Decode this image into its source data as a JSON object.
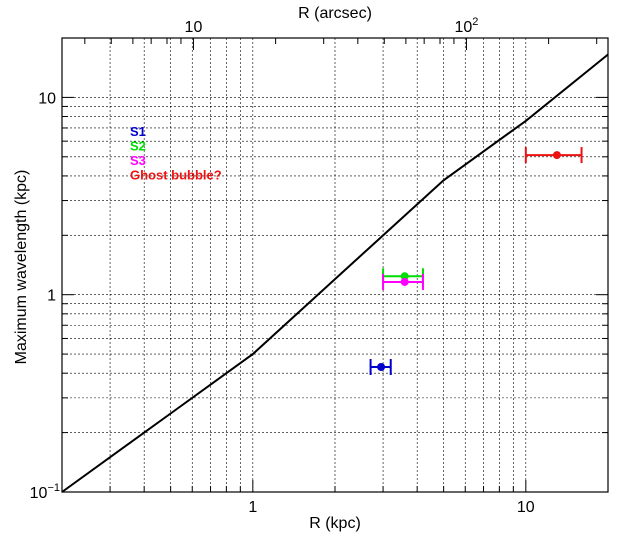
{
  "chart_data": {
    "type": "scatter",
    "xlabel": "R (kpc)",
    "ylabel": "Maximum wavelength (kpc)",
    "top_xlabel": "R (arcsec)",
    "x_scale": "log",
    "y_scale": "log",
    "xlim": [
      0.2,
      20
    ],
    "ylim": [
      0.1,
      20
    ],
    "top_xlim_arcsec": [
      3.3,
      330
    ],
    "grid": true,
    "x_ticks": [
      {
        "value": 1,
        "label": "1"
      },
      {
        "value": 10,
        "label": "10"
      }
    ],
    "y_ticks": [
      {
        "value": 0.1,
        "base": "10",
        "exp": "−1"
      },
      {
        "value": 1,
        "base": "1",
        "exp": ""
      },
      {
        "value": 10,
        "base": "10",
        "exp": ""
      }
    ],
    "top_ticks": [
      {
        "value": 10,
        "base": "10",
        "exp": ""
      },
      {
        "value": 100,
        "base": "10",
        "exp": "2"
      }
    ],
    "curve": {
      "x": [
        0.2,
        0.5,
        1,
        2,
        5,
        10,
        20
      ],
      "y": [
        0.1,
        0.25,
        0.5,
        1.2,
        3.8,
        7.6,
        16.5
      ]
    },
    "series": [
      {
        "name": "S1",
        "color": "#0000cc",
        "x": 2.95,
        "y": 0.43,
        "x_err": [
          2.7,
          3.2
        ]
      },
      {
        "name": "S2",
        "color": "#00dd00",
        "x": 3.6,
        "y": 1.24,
        "x_err": [
          3.0,
          4.2
        ]
      },
      {
        "name": "S3",
        "color": "#ff00ff",
        "x": 3.6,
        "y": 1.16,
        "x_err": [
          3.0,
          4.2
        ]
      },
      {
        "name": "Ghost bubble?",
        "color": "#ee1111",
        "x": 13.0,
        "y": 5.1,
        "x_err": [
          10.0,
          16.0
        ]
      }
    ],
    "legend_position": "top-left"
  }
}
